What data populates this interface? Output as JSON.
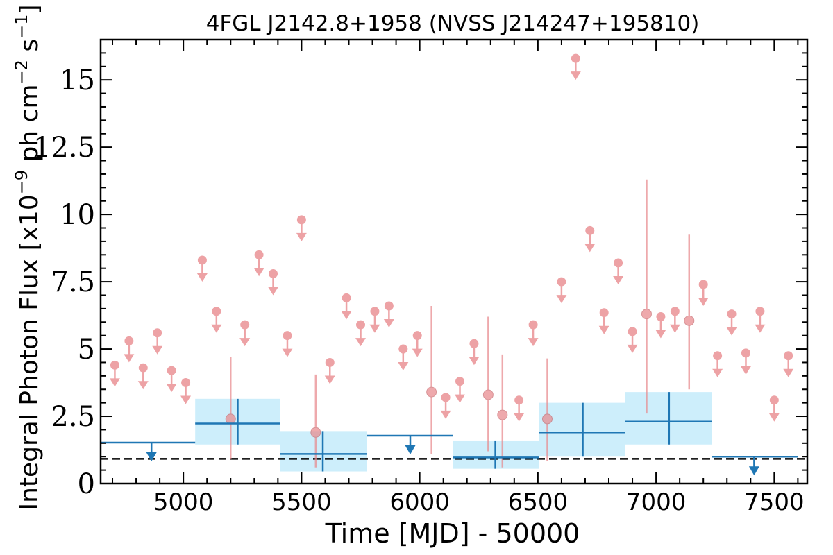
{
  "chart_data": {
    "type": "scatter",
    "title": "4FGL J2142.8+1958 (NVSS J214247+195810)",
    "xlabel": "Time [MJD] - 50000",
    "ylabel_main": "Integral Photon Flux [x10",
    "ylabel_exp1": "−9",
    "ylabel_mid": " ph cm",
    "ylabel_exp2": "−2",
    "ylabel_s": " s",
    "ylabel_exp3": "−1",
    "ylabel_end": "]",
    "xlim": [
      4650,
      7640
    ],
    "ylim": [
      0,
      16.5
    ],
    "xticks": [
      5000,
      5500,
      6000,
      6500,
      7000,
      7500
    ],
    "xtick_labels": [
      "5000",
      "5500",
      "6000",
      "6500",
      "7000",
      "7500"
    ],
    "yticks": [
      0,
      2.5,
      5,
      7.5,
      10,
      12.5,
      15
    ],
    "ytick_labels": [
      "0",
      "2.5",
      "5",
      "7.5",
      "10",
      "12.5",
      "15"
    ],
    "reference_line": 0.92,
    "colors": {
      "monthly": "#e8898d",
      "binned": "#1f77b4",
      "band": "#cdeefb",
      "reference": "#000000"
    },
    "monthly_upper_limits": [
      {
        "x": 4710,
        "y": 4.4
      },
      {
        "x": 4770,
        "y": 5.3
      },
      {
        "x": 4830,
        "y": 4.3
      },
      {
        "x": 4890,
        "y": 5.6
      },
      {
        "x": 4950,
        "y": 4.2
      },
      {
        "x": 5010,
        "y": 3.75
      },
      {
        "x": 5080,
        "y": 8.3
      },
      {
        "x": 5140,
        "y": 6.4
      },
      {
        "x": 5260,
        "y": 5.9
      },
      {
        "x": 5320,
        "y": 8.5
      },
      {
        "x": 5380,
        "y": 7.8
      },
      {
        "x": 5440,
        "y": 5.5
      },
      {
        "x": 5500,
        "y": 9.8
      },
      {
        "x": 5620,
        "y": 4.5
      },
      {
        "x": 5690,
        "y": 6.9
      },
      {
        "x": 5750,
        "y": 5.9
      },
      {
        "x": 5810,
        "y": 6.4
      },
      {
        "x": 5870,
        "y": 6.6
      },
      {
        "x": 5930,
        "y": 5.0
      },
      {
        "x": 5990,
        "y": 5.5
      },
      {
        "x": 6110,
        "y": 3.2
      },
      {
        "x": 6170,
        "y": 3.8
      },
      {
        "x": 6230,
        "y": 5.2
      },
      {
        "x": 6420,
        "y": 3.1
      },
      {
        "x": 6480,
        "y": 5.9
      },
      {
        "x": 6600,
        "y": 7.5
      },
      {
        "x": 6660,
        "y": 15.8
      },
      {
        "x": 6720,
        "y": 9.4
      },
      {
        "x": 6780,
        "y": 6.35
      },
      {
        "x": 6840,
        "y": 8.2
      },
      {
        "x": 6900,
        "y": 5.65
      },
      {
        "x": 7020,
        "y": 6.2
      },
      {
        "x": 7080,
        "y": 6.4
      },
      {
        "x": 7200,
        "y": 7.4
      },
      {
        "x": 7260,
        "y": 4.75
      },
      {
        "x": 7320,
        "y": 6.3
      },
      {
        "x": 7380,
        "y": 4.85
      },
      {
        "x": 7440,
        "y": 6.4
      },
      {
        "x": 7500,
        "y": 3.1
      },
      {
        "x": 7560,
        "y": 4.75
      }
    ],
    "monthly_detections": [
      {
        "x": 5200,
        "y": 2.4,
        "ylo": 0.9,
        "yhi": 4.7
      },
      {
        "x": 5560,
        "y": 1.9,
        "ylo": 0.6,
        "yhi": 4.05
      },
      {
        "x": 6050,
        "y": 3.4,
        "ylo": 1.1,
        "yhi": 6.6
      },
      {
        "x": 6290,
        "y": 3.3,
        "ylo": 1.2,
        "yhi": 6.2
      },
      {
        "x": 6350,
        "y": 2.55,
        "ylo": 0.6,
        "yhi": 4.8
      },
      {
        "x": 6540,
        "y": 2.4,
        "ylo": 0.85,
        "yhi": 4.65
      },
      {
        "x": 6960,
        "y": 6.3,
        "ylo": 2.6,
        "yhi": 11.3
      },
      {
        "x": 7140,
        "y": 6.05,
        "ylo": 3.5,
        "yhi": 9.25
      }
    ],
    "binned_detections": [
      {
        "x": 5230,
        "xlo": 5050,
        "xhi": 5410,
        "y": 2.23,
        "ylo": 1.45,
        "yhi": 3.15
      },
      {
        "x": 5590,
        "xlo": 5410,
        "xhi": 5775,
        "y": 1.1,
        "ylo": 0.45,
        "yhi": 1.95
      },
      {
        "x": 6320,
        "xlo": 6140,
        "xhi": 6505,
        "y": 0.97,
        "ylo": 0.55,
        "yhi": 1.6
      },
      {
        "x": 6690,
        "xlo": 6505,
        "xhi": 6870,
        "y": 1.9,
        "ylo": 1.0,
        "yhi": 3.0
      },
      {
        "x": 7055,
        "xlo": 6870,
        "xhi": 7235,
        "y": 2.3,
        "ylo": 1.45,
        "yhi": 3.4
      }
    ],
    "binned_upper_limits": [
      {
        "x": 4865,
        "xlo": 4650,
        "xhi": 5050,
        "y": 1.52
      },
      {
        "x": 5960,
        "xlo": 5775,
        "xhi": 6140,
        "y": 1.78
      },
      {
        "x": 7415,
        "xlo": 7235,
        "xhi": 7600,
        "y": 1.0
      }
    ]
  }
}
